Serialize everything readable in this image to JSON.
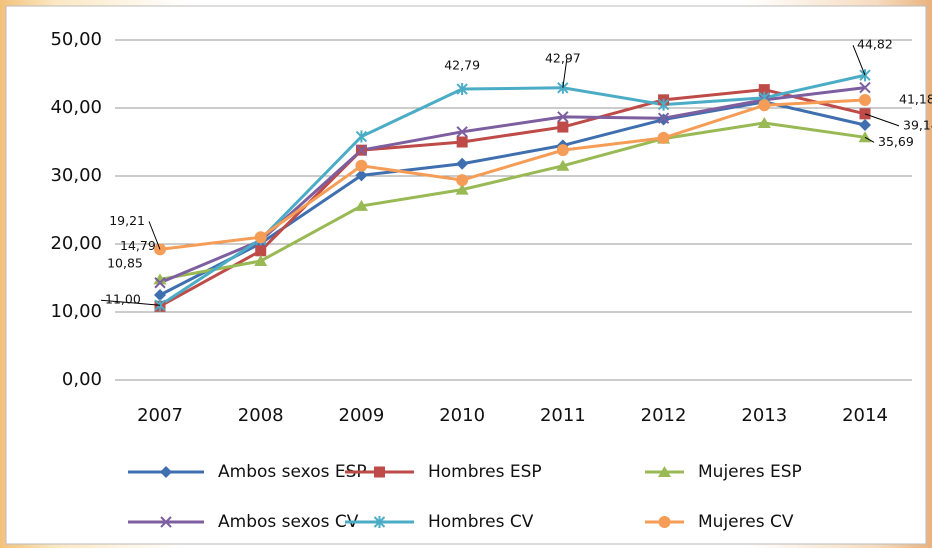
{
  "chart_data": {
    "type": "line",
    "categories": [
      "2007",
      "2008",
      "2009",
      "2010",
      "2011",
      "2012",
      "2013",
      "2014"
    ],
    "ylim": [
      0,
      50
    ],
    "yticks": [
      {
        "value": 0,
        "label": "0,00"
      },
      {
        "value": 10,
        "label": "10,00"
      },
      {
        "value": 20,
        "label": "20,00"
      },
      {
        "value": 30,
        "label": "30,00"
      },
      {
        "value": 40,
        "label": "40,00"
      },
      {
        "value": 50,
        "label": "50,00"
      }
    ],
    "grid": true,
    "legend": "bottom",
    "series": [
      {
        "name": "Ambos sexos ESP",
        "color": "#3f6faf",
        "marker": "diamond",
        "values": [
          12.5,
          20.1,
          30.1,
          31.8,
          34.5,
          38.3,
          40.9,
          37.5
        ],
        "value_labels": [
          null,
          null,
          null,
          null,
          null,
          null,
          null,
          null
        ]
      },
      {
        "name": "Hombres ESP",
        "color": "#be4b48",
        "marker": "square",
        "values": [
          10.85,
          19.0,
          33.8,
          35.0,
          37.2,
          41.2,
          42.7,
          39.14
        ],
        "value_labels": [
          "10,85",
          null,
          null,
          null,
          null,
          null,
          null,
          "39,14"
        ]
      },
      {
        "name": "Mujeres ESP",
        "color": "#98b954",
        "marker": "triangle",
        "values": [
          14.79,
          17.5,
          25.6,
          28.0,
          31.5,
          35.5,
          37.8,
          35.69
        ],
        "value_labels": [
          "14,79",
          null,
          null,
          null,
          null,
          null,
          null,
          "35,69"
        ]
      },
      {
        "name": "Ambos sexos CV",
        "color": "#7d5fa0",
        "marker": "x",
        "values": [
          14.3,
          20.5,
          33.8,
          36.5,
          38.7,
          38.5,
          41.2,
          43.0
        ],
        "value_labels": [
          null,
          null,
          null,
          null,
          null,
          null,
          null,
          null
        ]
      },
      {
        "name": "Hombres CV",
        "color": "#4bacc6",
        "marker": "star",
        "values": [
          11.0,
          20.7,
          35.8,
          42.79,
          42.97,
          40.5,
          41.5,
          44.82
        ],
        "value_labels": [
          "11,00",
          null,
          null,
          "42,79",
          "42,97",
          null,
          null,
          "44,82"
        ]
      },
      {
        "name": "Mujeres CV",
        "color": "#f59d56",
        "marker": "circle",
        "values": [
          19.21,
          21.0,
          31.5,
          29.4,
          33.8,
          35.6,
          40.4,
          41.18
        ],
        "value_labels": [
          "19,21",
          null,
          null,
          null,
          null,
          null,
          null,
          "41,18"
        ]
      }
    ]
  }
}
